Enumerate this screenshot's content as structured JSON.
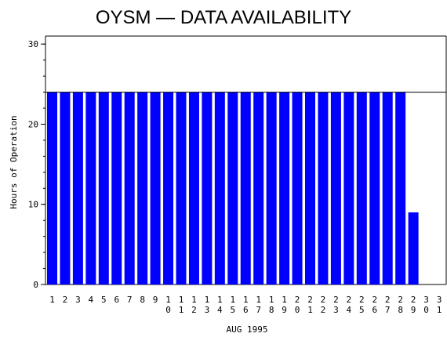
{
  "chart_data": {
    "type": "bar",
    "title": "OYSM — DATA AVAILABILITY",
    "xlabel": "AUG 1995",
    "ylabel": "Hours of Operation",
    "categories": [
      "1",
      "2",
      "3",
      "4",
      "5",
      "6",
      "7",
      "8",
      "9",
      "10",
      "11",
      "12",
      "13",
      "14",
      "15",
      "16",
      "17",
      "18",
      "19",
      "20",
      "21",
      "22",
      "23",
      "24",
      "25",
      "26",
      "27",
      "28",
      "29",
      "30",
      "31"
    ],
    "values": [
      24,
      24,
      24,
      24,
      24,
      24,
      24,
      24,
      24,
      24,
      24,
      24,
      24,
      24,
      24,
      24,
      24,
      24,
      24,
      24,
      24,
      24,
      24,
      24,
      24,
      24,
      24,
      24,
      9,
      0,
      0
    ],
    "ylim": [
      0,
      31
    ],
    "yticks": [
      0,
      10,
      20,
      30
    ],
    "yticks_minor_step": 2,
    "reference_line": 24,
    "grid": false,
    "colors": {
      "bar": "#0000ff",
      "axis": "#000000",
      "background": "#ffffff"
    }
  }
}
